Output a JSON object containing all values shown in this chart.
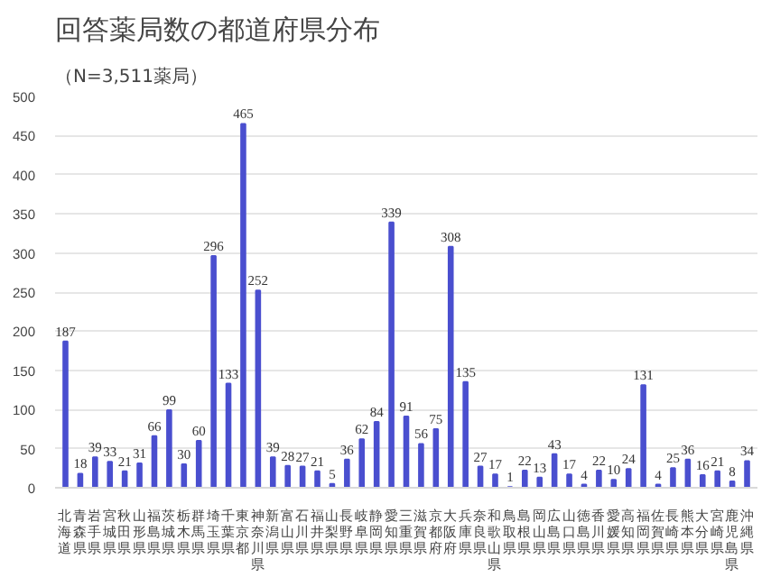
{
  "chart_data": {
    "type": "bar",
    "title": "回答薬局数の都道府県分布",
    "subtitle": "（N=3,511薬局）",
    "categories": [
      "北海道",
      "青森県",
      "岩手県",
      "宮城県",
      "秋田県",
      "山形県",
      "福島県",
      "茨城県",
      "栃木県",
      "群馬県",
      "埼玉県",
      "千葉県",
      "東京都",
      "神奈川県",
      "新潟県",
      "富山県",
      "石川県",
      "福井県",
      "山梨県",
      "長野県",
      "岐阜県",
      "静岡県",
      "愛知県",
      "三重県",
      "滋賀県",
      "京都府",
      "大阪府",
      "兵庫県",
      "奈良県",
      "和歌山県",
      "鳥取県",
      "島根県",
      "岡山県",
      "広島県",
      "山口県",
      "徳島県",
      "香川県",
      "愛媛県",
      "高知県",
      "福岡県",
      "佐賀県",
      "長崎県",
      "熊本県",
      "大分県",
      "宮崎県",
      "鹿児島県",
      "沖縄県"
    ],
    "values": [
      187,
      18,
      39,
      33,
      21,
      31,
      66,
      99,
      30,
      60,
      296,
      133,
      465,
      252,
      39,
      28,
      27,
      21,
      5,
      36,
      62,
      84,
      339,
      91,
      56,
      75,
      308,
      135,
      27,
      17,
      1,
      22,
      13,
      43,
      17,
      4,
      22,
      10,
      24,
      131,
      4,
      25,
      36,
      16,
      21,
      8,
      34
    ],
    "color": "#4a4fcf",
    "ylim": [
      0,
      500
    ],
    "yticks": [
      0,
      50,
      100,
      150,
      200,
      250,
      300,
      350,
      400,
      450,
      500
    ],
    "grid": "y",
    "data_labels": true
  }
}
